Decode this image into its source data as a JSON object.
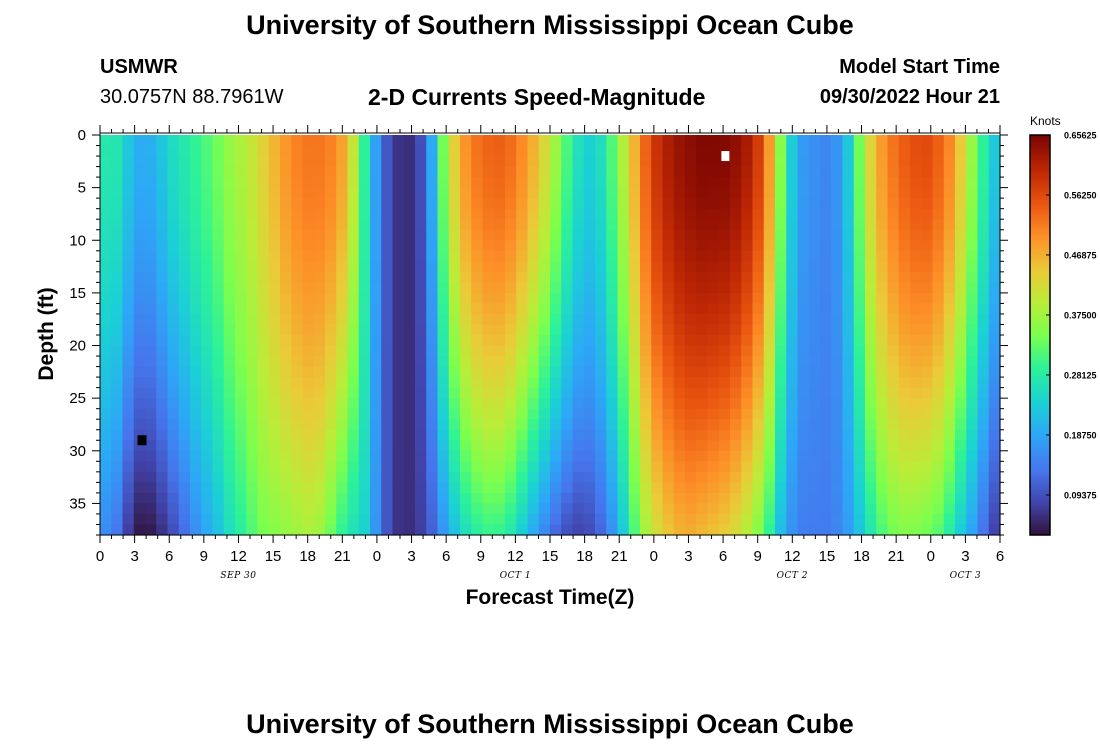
{
  "header": {
    "title": "University of Southern Mississippi Ocean Cube",
    "station": "USMWR",
    "coords": "30.0757N  88.7961W",
    "subtitle": "2-D Currents Speed-Magnitude",
    "model_start_label": "Model Start Time",
    "model_start_value": "09/30/2022 Hour 21"
  },
  "footer": {
    "title": "University of Southern Mississippi Ocean Cube"
  },
  "chart_data": {
    "type": "heatmap",
    "title": "2-D Currents Speed-Magnitude",
    "xlabel": "Forecast Time(Z)",
    "ylabel": "Depth (ft)",
    "x_start_hour_of_sep30": 0,
    "x_end_hour_of_sep30": 78,
    "x_ticks": [
      "0",
      "3",
      "6",
      "9",
      "12",
      "15",
      "18",
      "21",
      "0",
      "3",
      "6",
      "9",
      "12",
      "15",
      "18",
      "21",
      "0",
      "3",
      "6",
      "9",
      "12",
      "15",
      "18",
      "21",
      "0",
      "3",
      "6"
    ],
    "date_labels": [
      {
        "text": "SEP 30",
        "hour": 12
      },
      {
        "text": "OCT 1",
        "hour": 36
      },
      {
        "text": "OCT 2",
        "hour": 60
      },
      {
        "text": "OCT 3",
        "hour": 75
      }
    ],
    "y_range": [
      0,
      38
    ],
    "y_ticks": [
      "0",
      "5",
      "10",
      "15",
      "20",
      "25",
      "30",
      "35"
    ],
    "colorbar": {
      "title": "Knots",
      "min": 0.0312,
      "max": 0.6562,
      "labels": [
        "0.65625",
        "0.56250",
        "0.46875",
        "0.37500",
        "0.28125",
        "0.18750",
        "0.09375"
      ]
    },
    "min_marker": {
      "hour": 3.6,
      "depth": 29
    },
    "max_marker": {
      "hour": 54.2,
      "depth": 2
    },
    "columns": [
      {
        "h": 0,
        "s": 0.26,
        "b": 0.15
      },
      {
        "h": 1,
        "s": 0.29,
        "b": 0.16
      },
      {
        "h": 2,
        "s": 0.25,
        "b": 0.1
      },
      {
        "h": 3,
        "s": 0.2,
        "b": 0.04
      },
      {
        "h": 4,
        "s": 0.19,
        "b": 0.03
      },
      {
        "h": 5,
        "s": 0.21,
        "b": 0.05
      },
      {
        "h": 6,
        "s": 0.25,
        "b": 0.08
      },
      {
        "h": 7,
        "s": 0.27,
        "b": 0.11
      },
      {
        "h": 8,
        "s": 0.29,
        "b": 0.15
      },
      {
        "h": 9,
        "s": 0.31,
        "b": 0.18
      },
      {
        "h": 10,
        "s": 0.33,
        "b": 0.21
      },
      {
        "h": 11,
        "s": 0.36,
        "b": 0.25
      },
      {
        "h": 12,
        "s": 0.38,
        "b": 0.28
      },
      {
        "h": 13,
        "s": 0.4,
        "b": 0.31
      },
      {
        "h": 14,
        "s": 0.43,
        "b": 0.34
      },
      {
        "h": 15,
        "s": 0.46,
        "b": 0.35
      },
      {
        "h": 16,
        "s": 0.49,
        "b": 0.36
      },
      {
        "h": 17,
        "s": 0.51,
        "b": 0.37
      },
      {
        "h": 18,
        "s": 0.52,
        "b": 0.38
      },
      {
        "h": 19,
        "s": 0.52,
        "b": 0.37
      },
      {
        "h": 20,
        "s": 0.51,
        "b": 0.33
      },
      {
        "h": 21,
        "s": 0.48,
        "b": 0.29
      },
      {
        "h": 22,
        "s": 0.4,
        "b": 0.26
      },
      {
        "h": 23,
        "s": 0.28,
        "b": 0.24
      },
      {
        "h": 24,
        "s": 0.17,
        "b": 0.16
      },
      {
        "h": 25,
        "s": 0.09,
        "b": 0.09
      },
      {
        "h": 26,
        "s": 0.06,
        "b": 0.06
      },
      {
        "h": 27,
        "s": 0.06,
        "b": 0.06
      },
      {
        "h": 28,
        "s": 0.1,
        "b": 0.08
      },
      {
        "h": 29,
        "s": 0.22,
        "b": 0.12
      },
      {
        "h": 30,
        "s": 0.38,
        "b": 0.18
      },
      {
        "h": 31,
        "s": 0.46,
        "b": 0.23
      },
      {
        "h": 32,
        "s": 0.51,
        "b": 0.27
      },
      {
        "h": 33,
        "s": 0.53,
        "b": 0.29
      },
      {
        "h": 34,
        "s": 0.54,
        "b": 0.3
      },
      {
        "h": 35,
        "s": 0.54,
        "b": 0.29
      },
      {
        "h": 36,
        "s": 0.52,
        "b": 0.26
      },
      {
        "h": 37,
        "s": 0.49,
        "b": 0.21
      },
      {
        "h": 38,
        "s": 0.45,
        "b": 0.17
      },
      {
        "h": 39,
        "s": 0.4,
        "b": 0.13
      },
      {
        "h": 40,
        "s": 0.34,
        "b": 0.1
      },
      {
        "h": 41,
        "s": 0.28,
        "b": 0.08
      },
      {
        "h": 42,
        "s": 0.24,
        "b": 0.08
      },
      {
        "h": 43,
        "s": 0.24,
        "b": 0.1
      },
      {
        "h": 44,
        "s": 0.29,
        "b": 0.14
      },
      {
        "h": 45,
        "s": 0.36,
        "b": 0.2
      },
      {
        "h": 46,
        "s": 0.44,
        "b": 0.29
      },
      {
        "h": 47,
        "s": 0.52,
        "b": 0.36
      },
      {
        "h": 48,
        "s": 0.58,
        "b": 0.41
      },
      {
        "h": 49,
        "s": 0.61,
        "b": 0.44
      },
      {
        "h": 50,
        "s": 0.63,
        "b": 0.46
      },
      {
        "h": 51,
        "s": 0.64,
        "b": 0.47
      },
      {
        "h": 52,
        "s": 0.65,
        "b": 0.46
      },
      {
        "h": 53,
        "s": 0.65,
        "b": 0.45
      },
      {
        "h": 54,
        "s": 0.65,
        "b": 0.44
      },
      {
        "h": 55,
        "s": 0.64,
        "b": 0.42
      },
      {
        "h": 56,
        "s": 0.62,
        "b": 0.39
      },
      {
        "h": 57,
        "s": 0.58,
        "b": 0.35
      },
      {
        "h": 58,
        "s": 0.49,
        "b": 0.29
      },
      {
        "h": 59,
        "s": 0.35,
        "b": 0.21
      },
      {
        "h": 60,
        "s": 0.23,
        "b": 0.16
      },
      {
        "h": 61,
        "s": 0.17,
        "b": 0.14
      },
      {
        "h": 62,
        "s": 0.16,
        "b": 0.14
      },
      {
        "h": 63,
        "s": 0.15,
        "b": 0.14
      },
      {
        "h": 64,
        "s": 0.17,
        "b": 0.15
      },
      {
        "h": 65,
        "s": 0.24,
        "b": 0.18
      },
      {
        "h": 66,
        "s": 0.36,
        "b": 0.23
      },
      {
        "h": 67,
        "s": 0.45,
        "b": 0.28
      },
      {
        "h": 68,
        "s": 0.5,
        "b": 0.32
      },
      {
        "h": 69,
        "s": 0.53,
        "b": 0.34
      },
      {
        "h": 70,
        "s": 0.55,
        "b": 0.35
      },
      {
        "h": 71,
        "s": 0.56,
        "b": 0.34
      },
      {
        "h": 72,
        "s": 0.56,
        "b": 0.33
      },
      {
        "h": 73,
        "s": 0.53,
        "b": 0.31
      },
      {
        "h": 74,
        "s": 0.49,
        "b": 0.26
      },
      {
        "h": 75,
        "s": 0.41,
        "b": 0.21
      },
      {
        "h": 76,
        "s": 0.33,
        "b": 0.16
      },
      {
        "h": 77,
        "s": 0.26,
        "b": 0.1
      },
      {
        "h": 78,
        "s": 0.2,
        "b": 0.06
      }
    ]
  }
}
